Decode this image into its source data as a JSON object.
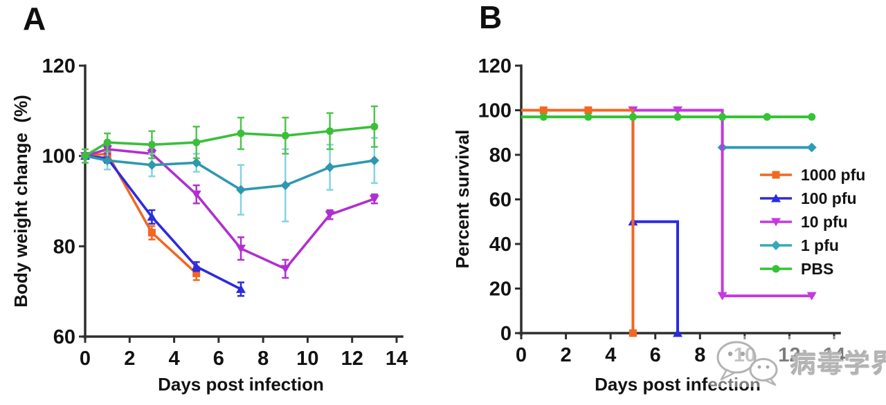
{
  "panels": [
    {
      "letter": "A"
    },
    {
      "letter": "B"
    }
  ],
  "chart_data": [
    {
      "type": "line",
      "panel": "A",
      "xlabel": "Days post infection",
      "ylabel": "Body weight change  (%)",
      "xlim": [
        0,
        14
      ],
      "ylim": [
        60,
        120
      ],
      "xticks": [
        0,
        2,
        4,
        6,
        8,
        10,
        12,
        14
      ],
      "yticks": [
        60,
        80,
        100,
        120
      ],
      "grid": false,
      "series": [
        {
          "name": "1000 pfu",
          "color": "#F26722",
          "marker": "square",
          "x": [
            0,
            1,
            3,
            5
          ],
          "y": [
            100,
            100.5,
            83,
            74
          ],
          "err": [
            0,
            1,
            1.5,
            1.5
          ]
        },
        {
          "name": "100 pfu",
          "color": "#2B2BE0",
          "marker": "triangle-up",
          "x": [
            0,
            1,
            3,
            5,
            7
          ],
          "y": [
            100,
            99.5,
            86.5,
            75.5,
            70.5
          ],
          "err": [
            0,
            1,
            1.5,
            1,
            1.5
          ]
        },
        {
          "name": "10 pfu",
          "color": "#B02FD0",
          "marker": "triangle-down",
          "x": [
            0,
            1,
            3,
            5,
            7,
            9,
            11,
            13
          ],
          "y": [
            100,
            101.5,
            100.5,
            91.5,
            79.5,
            75,
            87,
            90.5
          ],
          "err": [
            0,
            1,
            1,
            2,
            2.5,
            2,
            1,
            1
          ]
        },
        {
          "name": "1 pfu",
          "color": "#2E98B0",
          "err_color": "#85D2E4",
          "marker": "diamond",
          "x": [
            0,
            1,
            3,
            5,
            7,
            9,
            11,
            13
          ],
          "y": [
            100,
            99,
            98,
            98.5,
            92.5,
            93.5,
            97.5,
            99
          ],
          "err": [
            0,
            2,
            2.5,
            2,
            5.5,
            8,
            5,
            5
          ]
        },
        {
          "name": "PBS",
          "color": "#3ABF3A",
          "err_color": "#4FC44F",
          "marker": "circle",
          "x": [
            0,
            1,
            3,
            5,
            7,
            9,
            11,
            13
          ],
          "y": [
            100,
            103,
            102.5,
            103,
            105,
            104.5,
            105.5,
            106.5
          ],
          "err": [
            1.5,
            2,
            3,
            3.5,
            3.5,
            4,
            4,
            4.5
          ]
        }
      ]
    },
    {
      "type": "step",
      "panel": "B",
      "xlabel": "Days post infection",
      "ylabel": "Percent survival",
      "xlim": [
        0,
        14
      ],
      "ylim": [
        0,
        120
      ],
      "xticks": [
        0,
        2,
        4,
        6,
        8,
        10,
        12,
        14
      ],
      "yticks": [
        0,
        20,
        40,
        60,
        80,
        100,
        120
      ],
      "grid": false,
      "legend_position": "right",
      "series": [
        {
          "name": "1000 pfu",
          "color": "#F26722",
          "marker": "square",
          "path": [
            [
              0,
              100
            ],
            [
              5,
              100
            ],
            [
              5,
              0
            ]
          ],
          "markers": [
            [
              1,
              100
            ],
            [
              3,
              100
            ],
            [
              5,
              0
            ]
          ]
        },
        {
          "name": "100 pfu",
          "color": "#2B2BE0",
          "marker": "triangle-up",
          "path": [
            [
              0,
              100
            ],
            [
              5,
              100
            ],
            [
              5,
              50
            ],
            [
              7,
              50
            ],
            [
              7,
              0
            ]
          ],
          "markers": [
            [
              5,
              50
            ],
            [
              7,
              0
            ]
          ]
        },
        {
          "name": "10 pfu",
          "color": "#C539DE",
          "marker": "triangle-down",
          "path": [
            [
              0,
              100
            ],
            [
              9,
              100
            ],
            [
              9,
              16.7
            ],
            [
              13,
              16.7
            ]
          ],
          "markers": [
            [
              5,
              100
            ],
            [
              7,
              100
            ],
            [
              9,
              16.7
            ],
            [
              13,
              16.7
            ]
          ]
        },
        {
          "name": "1 pfu",
          "color": "#2D9BB9",
          "marker": "diamond",
          "path": [
            [
              0,
              100
            ],
            [
              9,
              100
            ],
            [
              9,
              83.3
            ],
            [
              13,
              83.3
            ]
          ],
          "markers": [
            [
              9,
              83.3
            ],
            [
              13,
              83.3
            ]
          ]
        },
        {
          "name": "PBS",
          "color": "#33C433",
          "marker": "circle",
          "path": [
            [
              0,
              97
            ],
            [
              13,
              97
            ]
          ],
          "markers": [
            [
              1,
              97
            ],
            [
              3,
              97
            ],
            [
              5,
              97
            ],
            [
              7,
              97
            ],
            [
              9,
              97
            ],
            [
              11,
              97
            ],
            [
              13,
              97
            ]
          ]
        }
      ]
    }
  ],
  "legend": {
    "items": [
      {
        "label": "1000 pfu",
        "color": "#F26722",
        "marker": "square"
      },
      {
        "label": "100 pfu",
        "color": "#2B2BE0",
        "marker": "triangle-up"
      },
      {
        "label": "10 pfu",
        "color": "#C539DE",
        "marker": "triangle-down"
      },
      {
        "label": "1 pfu",
        "color": "#35A8BE",
        "marker": "diamond"
      },
      {
        "label": "PBS",
        "color": "#33C433",
        "marker": "circle"
      }
    ]
  },
  "watermark": {
    "text": "病毒学界",
    "icon": "wechat-logo-icon"
  }
}
